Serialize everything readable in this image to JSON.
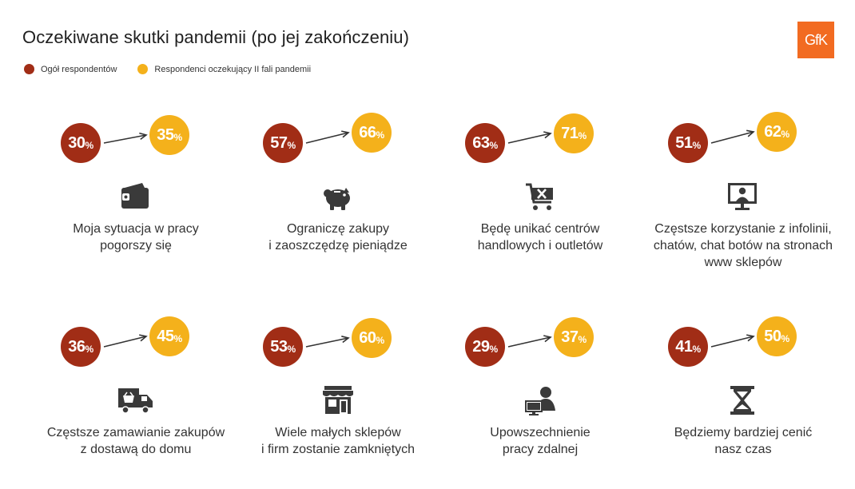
{
  "title": "Oczekiwane skutki pandemii (po jej zakończeniu)",
  "logo_text": "GfK",
  "colors": {
    "all": "#a12d16",
    "wave": "#f4b11b",
    "icon": "#3a3a3a",
    "brand": "#f26b21"
  },
  "legend": [
    {
      "label": "Ogół respondentów",
      "color": "#a12d16"
    },
    {
      "label": "Respondenci oczekujący II fali pandemii",
      "color": "#f4b11b"
    }
  ],
  "pct_symbol": "%",
  "chart_data": {
    "type": "dot-arrow",
    "title": "Oczekiwane skutki pandemii (po jej zakończeniu)",
    "unit": "%",
    "series": [
      {
        "name": "Ogół respondentów",
        "values": [
          30,
          57,
          63,
          51,
          36,
          53,
          29,
          41
        ]
      },
      {
        "name": "Respondenci oczekujący II fali pandemii",
        "values": [
          35,
          66,
          71,
          62,
          45,
          60,
          37,
          50
        ]
      }
    ],
    "categories": [
      {
        "lines": [
          "Moja sytuacja w pracy",
          "pogorszy się"
        ],
        "icon": "wallet-icon"
      },
      {
        "lines": [
          "Ograniczę zakupy",
          "i zaoszczędzę pieniądze"
        ],
        "icon": "piggy-bank-icon"
      },
      {
        "lines": [
          "Będę unikać centrów",
          "handlowych i outletów"
        ],
        "icon": "shopping-cart-x-icon"
      },
      {
        "lines": [
          "Częstsze korzystanie z infolinii,",
          "chatów, chat botów na stronach",
          "www sklepów"
        ],
        "icon": "monitor-user-icon"
      },
      {
        "lines": [
          "Częstsze zamawianie zakupów",
          "z dostawą do domu"
        ],
        "icon": "delivery-truck-icon"
      },
      {
        "lines": [
          "Wiele małych sklepów",
          "i firm zostanie zamkniętych"
        ],
        "icon": "storefront-icon"
      },
      {
        "lines": [
          "Upowszechnienie",
          "pracy zdalnej"
        ],
        "icon": "remote-worker-icon"
      },
      {
        "lines": [
          "Będziemy bardziej cenić",
          "nasz czas"
        ],
        "icon": "hourglass-icon"
      }
    ]
  }
}
